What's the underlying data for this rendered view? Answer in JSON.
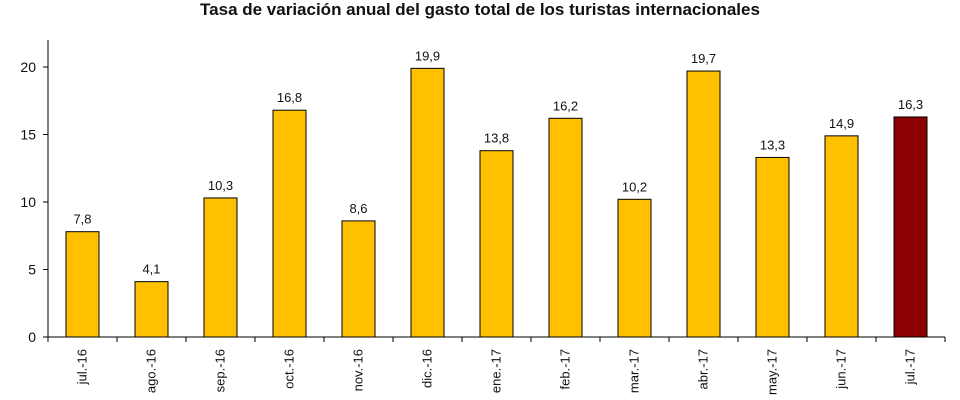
{
  "chart_data": {
    "type": "bar",
    "title": "Tasa de variación anual del gasto total de los turistas internacionales",
    "categories": [
      "jul.-16",
      "ago.-16",
      "sep.-16",
      "oct.-16",
      "nov.-16",
      "dic.-16",
      "ene.-17",
      "feb.-17",
      "mar.-17",
      "abr.-17",
      "may.-17",
      "jun.-17",
      "jul.-17"
    ],
    "values": [
      7.8,
      4.1,
      10.3,
      16.8,
      8.6,
      19.9,
      13.8,
      16.2,
      10.2,
      19.7,
      13.3,
      14.9,
      16.3
    ],
    "data_labels": [
      "7,8",
      "4,1",
      "10,3",
      "16,8",
      "8,6",
      "19,9",
      "13,8",
      "16,2",
      "10,2",
      "19,7",
      "13,3",
      "14,9",
      "16,3"
    ],
    "y_ticks": [
      0,
      5,
      10,
      15,
      20
    ],
    "ylim": [
      0,
      22
    ],
    "xlabel": "",
    "ylabel": "",
    "grid": false,
    "colors": {
      "bar": "#FFC000",
      "highlight": "#8B0000",
      "bar_stroke": "#000000",
      "axis": "#000000"
    },
    "highlight_index": 12
  }
}
